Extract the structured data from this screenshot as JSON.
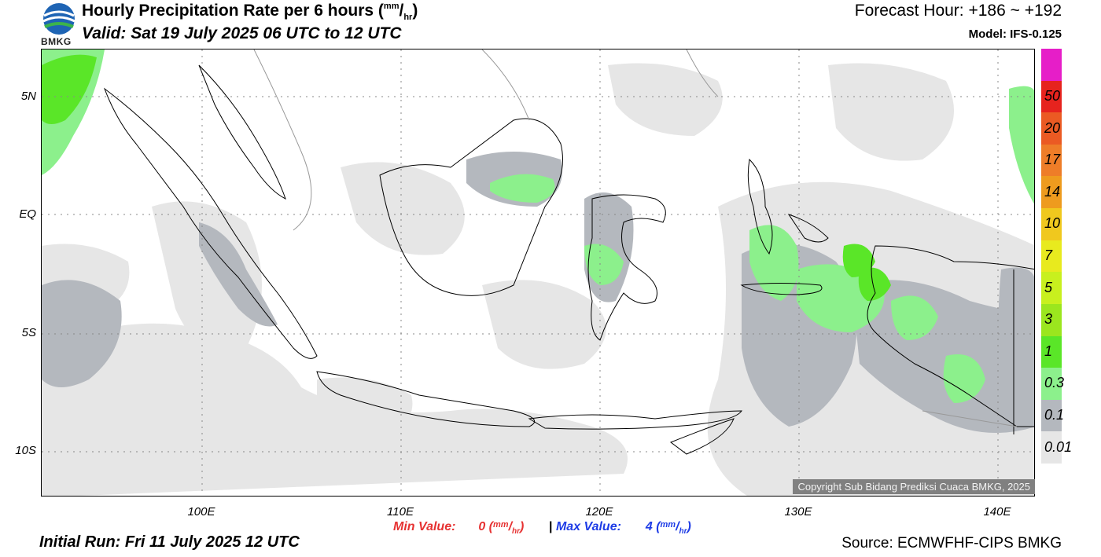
{
  "header": {
    "title": "Hourly Precipitation Rate per 6 hours",
    "title_unit_num": "mm",
    "title_unit_den": "hr",
    "valid": "Valid: Sat 19 July 2025 06 UTC to 12 UTC",
    "forecast_hour": "Forecast Hour: +186 ~ +192",
    "model": "Model: IFS-0.125",
    "logo_text": "BMKG"
  },
  "axes": {
    "lat_labels": [
      "5N",
      "EQ",
      "5S",
      "10S"
    ],
    "lon_labels": [
      "100E",
      "110E",
      "120E",
      "130E",
      "140E"
    ]
  },
  "legend": {
    "levels": [
      "50",
      "20",
      "17",
      "14",
      "10",
      "7",
      "5",
      "3",
      "1",
      "0.3",
      "0.1",
      "0.01"
    ],
    "colors": [
      "#e61ec8",
      "#e6231e",
      "#eb5a23",
      "#ee7d28",
      "#ee9b1e",
      "#f0c81e",
      "#e8ea1e",
      "#c8f01e",
      "#9be61e",
      "#5ae628",
      "#8cf08c",
      "#b4b8be",
      "#e6e6e6"
    ]
  },
  "stats": {
    "min_label": "Min Value:",
    "min_value": "0",
    "max_label": "Max Value:",
    "max_value": "4",
    "unit_num": "mm",
    "unit_den": "hr",
    "separator": "|"
  },
  "footer": {
    "initial_run": "Initial Run: Fri 11 July 2025 12 UTC",
    "source": "Source: ECMWFHF-CIPS BMKG",
    "copyright": "Copyright Sub Bidang Prediksi Cuaca BMKG, 2025"
  },
  "map_colors": {
    "light": "#e6e6e6",
    "gray": "#b4b8be",
    "lightgreen": "#8cf08c",
    "green": "#5ae628"
  }
}
